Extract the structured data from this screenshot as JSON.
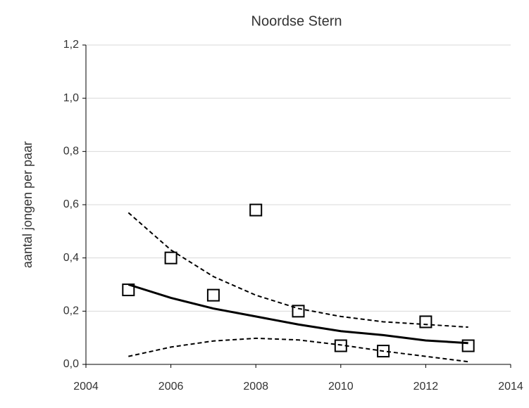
{
  "chart_data": {
    "type": "scatter",
    "title": "Noordse Stern",
    "y_label": "aantal jongen per paar",
    "x": [
      2005,
      2006,
      2007,
      2008,
      2009,
      2010,
      2011,
      2012,
      2013
    ],
    "series": [
      {
        "color": "#000000",
        "marker": "square",
        "line": "none",
        "values": [
          0.28,
          0.4,
          0.26,
          0.58,
          0.2,
          0.07,
          0.05,
          0.16,
          0.07
        ]
      },
      {
        "color": "#000000",
        "marker": "none",
        "line": "solid",
        "values": [
          0.3,
          0.25,
          0.21,
          0.18,
          0.15,
          0.125,
          0.11,
          0.09,
          0.08
        ]
      },
      {
        "color": "#000000",
        "marker": "none",
        "line": "dashed",
        "values": [
          0.57,
          0.43,
          0.33,
          0.26,
          0.21,
          0.18,
          0.16,
          0.15,
          0.14
        ]
      },
      {
        "color": "#000000",
        "marker": "none",
        "line": "dashed",
        "values": [
          0.03,
          0.065,
          0.088,
          0.098,
          0.092,
          0.073,
          0.05,
          0.03,
          0.01
        ]
      }
    ],
    "xlim": [
      2004,
      2014
    ],
    "xticks": [
      2004,
      2006,
      2008,
      2010,
      2012,
      2014
    ],
    "ylim": [
      0,
      1.2
    ],
    "yticks": [
      {
        "value": 0,
        "label": "0,0"
      },
      {
        "value": 0.2,
        "label": "0,2"
      },
      {
        "value": 0.4,
        "label": "0,4"
      },
      {
        "value": 0.6,
        "label": "0,6"
      },
      {
        "value": 0.8,
        "label": "0,8"
      },
      {
        "value": 1.0,
        "label": "1,0"
      },
      {
        "value": 1.2,
        "label": "1,2"
      }
    ],
    "grid": true
  }
}
